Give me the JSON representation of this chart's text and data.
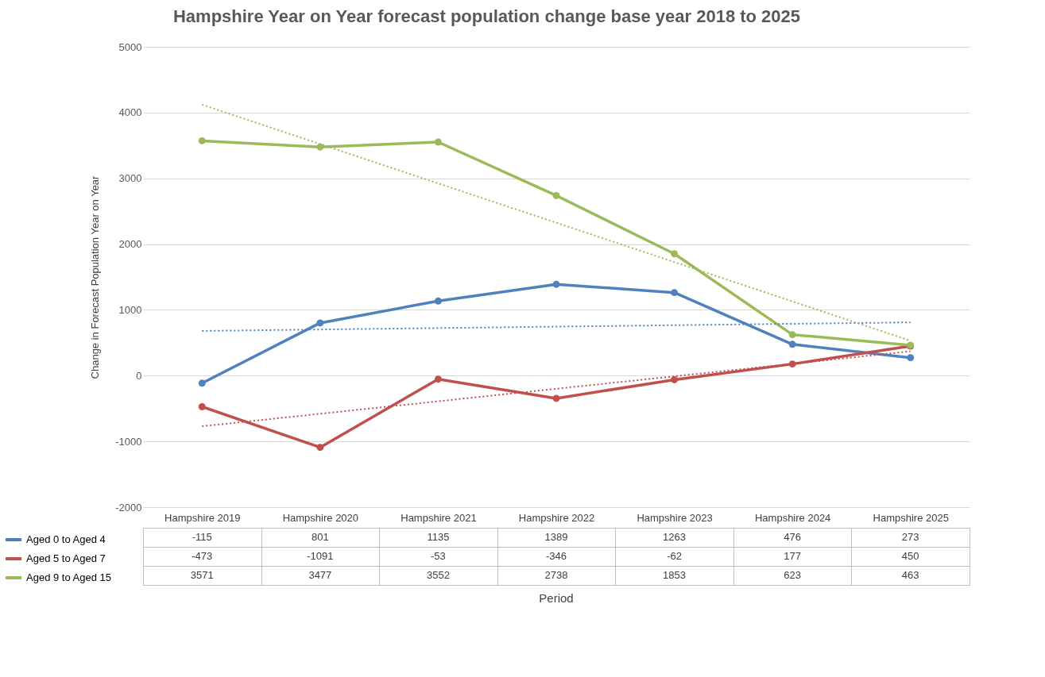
{
  "chart_data": {
    "type": "line",
    "title": "Hampshire Year on Year forecast population change base year 2018 to 2025",
    "annotations": [
      "Period"
    ],
    "ylabel": "Change in Forecast Population Year on Year",
    "categories": [
      "Hampshire 2019",
      "Hampshire 2020",
      "Hampshire 2021",
      "Hampshire 2022",
      "Hampshire 2023",
      "Hampshire 2024",
      "Hampshire 2025"
    ],
    "series": [
      {
        "name": "Aged 0 to Aged 4",
        "color": "#4f81bd",
        "values": [
          -115,
          801,
          1135,
          1389,
          1263,
          476,
          273
        ],
        "value_labels": [
          "-115",
          "801",
          "1135",
          "1389",
          "1263",
          "476",
          "273"
        ]
      },
      {
        "name": "Aged 5 to Aged 7",
        "color": "#c0504d",
        "values": [
          -473,
          -1091,
          -53,
          -346,
          -62,
          177,
          450
        ],
        "value_labels": [
          "-473",
          "-1091",
          "-53",
          "-346",
          "-62",
          "177",
          "450"
        ]
      },
      {
        "name": "Aged 9 to Aged 15",
        "color": "#9bbb59",
        "values": [
          3571,
          3477,
          3552,
          2738,
          1853,
          623,
          463
        ],
        "value_labels": [
          "3571",
          "3477",
          "3552",
          "2738",
          "1853",
          "623",
          "463"
        ]
      },
      {
        "type": "line",
        "color": "#4f81bd",
        "x": [
          "Hampshire 2019",
          "Hampshire 2025"
        ],
        "values": [
          680,
          810
        ],
        "line_style": "dotted",
        "marker": "none"
      },
      {
        "type": "line",
        "color": "#c0504d",
        "x": [
          "Hampshire 2019",
          "Hampshire 2025"
        ],
        "values": [
          -770,
          370
        ],
        "line_style": "dotted",
        "marker": "none"
      },
      {
        "type": "line",
        "color": "#9bbb59",
        "x": [
          "Hampshire 2019",
          "Hampshire 2025"
        ],
        "values": [
          4120,
          530
        ],
        "line_style": "dotted",
        "marker": "none"
      }
    ],
    "ylim": [
      -2000,
      5000
    ],
    "yticks": [
      -2000,
      -1000,
      0,
      1000,
      2000,
      3000,
      4000,
      5000
    ],
    "grid": "y",
    "legend": "bottom left",
    "marker": "circle",
    "line_style": "solid"
  }
}
